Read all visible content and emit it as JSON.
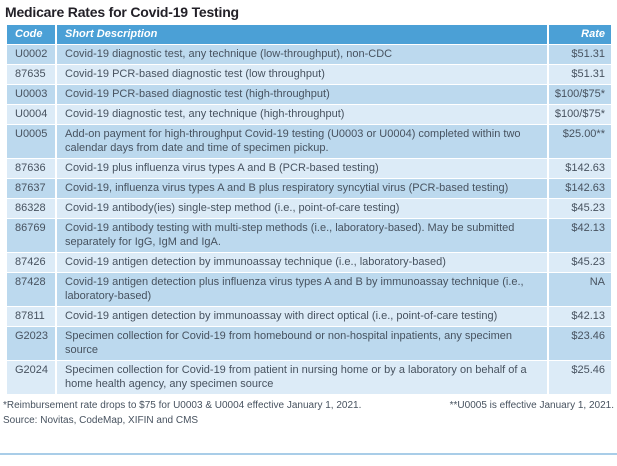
{
  "chart_data": {
    "type": "table",
    "title": "Medicare Rates for Covid-19 Testing",
    "columns": [
      "Code",
      "Short Description",
      "Rate"
    ],
    "rows": [
      {
        "code": "U0002",
        "description": "Covid-19 diagnostic test, any technique (low-throughput), non-CDC",
        "rate": "$51.31"
      },
      {
        "code": "87635",
        "description": "Covid-19 PCR-based diagnostic test (low throughput)",
        "rate": "$51.31"
      },
      {
        "code": "U0003",
        "description": "Covid-19 PCR-based diagnostic test (high-throughput)",
        "rate": "$100/$75*"
      },
      {
        "code": "U0004",
        "description": "Covid-19 diagnostic test, any technique (high-throughput)",
        "rate": "$100/$75*"
      },
      {
        "code": "U0005",
        "description": "Add-on payment for high-throughput Covid-19 testing (U0003 or U0004) completed within two calendar days from date and time of specimen pickup.",
        "rate": "$25.00**"
      },
      {
        "code": "87636",
        "description": "Covid-19 plus influenza virus types A and B (PCR-based testing)",
        "rate": "$142.63"
      },
      {
        "code": "87637",
        "description": "Covid-19, influenza virus types A and B plus respiratory syncytial virus (PCR-based testing)",
        "rate": "$142.63"
      },
      {
        "code": "86328",
        "description": "Covid-19 antibody(ies) single-step method (i.e., point-of-care testing)",
        "rate": "$45.23"
      },
      {
        "code": "86769",
        "description": "Covid-19 antibody testing with multi-step methods (i.e., laboratory-based). May be submitted separately for IgG, IgM and IgA.",
        "rate": "$42.13"
      },
      {
        "code": "87426",
        "description": "Covid-19 antigen detection by immunoassay technique (i.e., laboratory-based)",
        "rate": "$45.23"
      },
      {
        "code": "87428",
        "description": "Covid-19 antigen detection plus influenza virus types A and B by immunoassay technique (i.e., laboratory-based)",
        "rate": "NA"
      },
      {
        "code": "87811",
        "description": "Covid-19 antigen detection by immunoassay with direct optical (i.e., point-of-care testing)",
        "rate": "$42.13"
      },
      {
        "code": "G2023",
        "description": "Specimen collection for Covid-19 from homebound or non-hospital inpatients, any specimen source",
        "rate": "$23.46"
      },
      {
        "code": "G2024",
        "description": "Specimen collection for Covid-19 from patient in nursing home or by a laboratory on behalf of a home health agency, any specimen source",
        "rate": "$25.46"
      }
    ],
    "footnotes": {
      "left": "*Reimbursement rate drops to $75 for U0003 & U0004 effective January 1, 2021.",
      "right": "**U0005 is effective January 1, 2021."
    },
    "source": "Source: Novitas, CodeMap, XIFIN and CMS",
    "layout_hints": {
      "grid": "off",
      "row_shading": "alternating",
      "legend": "none"
    }
  },
  "colors": {
    "header_bg": "#4BA0D6",
    "header_text": "#FFFFFF",
    "row_dark": "#BCD9EE",
    "row_light": "#DCEBF7",
    "body_text": "#47525F",
    "title_text": "#232128",
    "bottom_rule": "#A9CDE8"
  }
}
